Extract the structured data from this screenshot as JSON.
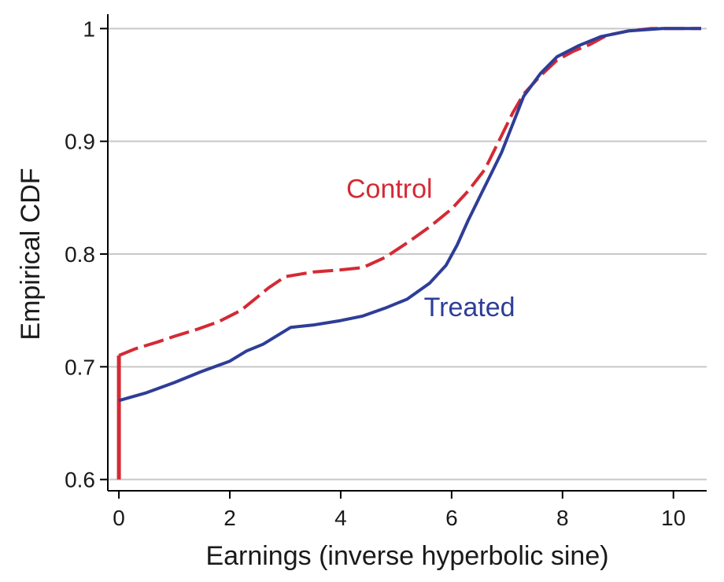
{
  "chart_data": {
    "type": "line",
    "xlabel": "Earnings (inverse hyperbolic sine)",
    "ylabel": "Empirical CDF",
    "xlim": [
      -0.2,
      10.6
    ],
    "ylim": [
      0.59,
      1.01
    ],
    "x_ticks": [
      0,
      2,
      4,
      6,
      8,
      10
    ],
    "y_ticks": [
      0.6,
      0.7,
      0.8,
      0.9,
      1
    ],
    "x_tick_labels": [
      "0",
      "2",
      "4",
      "6",
      "8",
      "10"
    ],
    "y_tick_labels": [
      "0.6",
      "0.7",
      "0.8",
      "0.9",
      "1"
    ],
    "grid": "horizontal",
    "series": [
      {
        "name": "Control",
        "color": "#d42a34",
        "dash": "dashed",
        "start": {
          "x": 0,
          "y_from": 0.6,
          "y_to": 0.71
        },
        "points": [
          [
            0,
            0.71
          ],
          [
            0.3,
            0.716
          ],
          [
            0.7,
            0.722
          ],
          [
            1.0,
            0.727
          ],
          [
            1.4,
            0.733
          ],
          [
            1.8,
            0.74
          ],
          [
            2.2,
            0.75
          ],
          [
            2.5,
            0.762
          ],
          [
            2.7,
            0.77
          ],
          [
            3.0,
            0.78
          ],
          [
            3.5,
            0.784
          ],
          [
            4.0,
            0.786
          ],
          [
            4.4,
            0.788
          ],
          [
            4.8,
            0.797
          ],
          [
            5.2,
            0.81
          ],
          [
            5.6,
            0.824
          ],
          [
            6.0,
            0.84
          ],
          [
            6.3,
            0.856
          ],
          [
            6.6,
            0.875
          ],
          [
            6.9,
            0.905
          ],
          [
            7.1,
            0.925
          ],
          [
            7.3,
            0.942
          ],
          [
            7.6,
            0.958
          ],
          [
            7.9,
            0.972
          ],
          [
            8.2,
            0.98
          ],
          [
            8.5,
            0.986
          ],
          [
            8.8,
            0.994
          ],
          [
            9.2,
            0.998
          ],
          [
            9.6,
            1.0
          ],
          [
            10.5,
            1.0
          ]
        ]
      },
      {
        "name": "Treated",
        "color": "#2e3d97",
        "dash": "solid",
        "points": [
          [
            0,
            0.67
          ],
          [
            0.5,
            0.677
          ],
          [
            1.0,
            0.686
          ],
          [
            1.5,
            0.696
          ],
          [
            2.0,
            0.705
          ],
          [
            2.3,
            0.714
          ],
          [
            2.6,
            0.72
          ],
          [
            2.8,
            0.726
          ],
          [
            3.1,
            0.735
          ],
          [
            3.5,
            0.737
          ],
          [
            4.0,
            0.741
          ],
          [
            4.4,
            0.745
          ],
          [
            4.8,
            0.752
          ],
          [
            5.2,
            0.76
          ],
          [
            5.6,
            0.774
          ],
          [
            5.9,
            0.79
          ],
          [
            6.1,
            0.808
          ],
          [
            6.3,
            0.83
          ],
          [
            6.5,
            0.85
          ],
          [
            6.7,
            0.87
          ],
          [
            6.9,
            0.89
          ],
          [
            7.1,
            0.915
          ],
          [
            7.3,
            0.94
          ],
          [
            7.6,
            0.96
          ],
          [
            7.9,
            0.975
          ],
          [
            8.3,
            0.985
          ],
          [
            8.7,
            0.993
          ],
          [
            9.2,
            0.998
          ],
          [
            9.8,
            1.0
          ],
          [
            10.5,
            1.0
          ]
        ]
      }
    ],
    "annotations": [
      {
        "text": "Control",
        "series": "Control",
        "x": 4.1,
        "y": 0.85
      },
      {
        "text": "Treated",
        "series": "Treated",
        "x": 5.5,
        "y": 0.745
      }
    ]
  }
}
